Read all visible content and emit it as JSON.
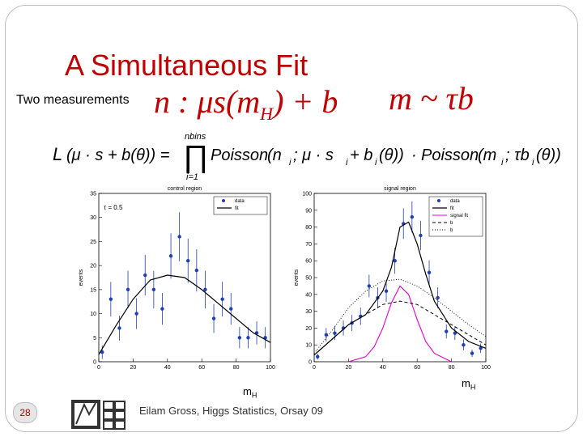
{
  "slide": {
    "title": "A Simultaneous Fit",
    "subtitle": "Two measurements",
    "eq_n": "n : μs(m",
    "eq_n_sub": "H",
    "eq_n_tail": ") + b",
    "eq_m": "m ~ τb",
    "footer": "Eilam Gross, Higgs Statistics, Orsay 09",
    "page_number": "28",
    "xlabel_left": "m",
    "xlabel_right": "m",
    "xlabel_sub": "H"
  },
  "formula": {
    "L": "L",
    "lhs_args": "(μ · s + b(θ)) =",
    "prod_top": "nbins",
    "prod_sym": "∏",
    "prod_bottom": "i=1",
    "pois1": "Poisson",
    "pois1_args": "(n",
    "pois1_i": "i",
    "pois1_mid": "; μ · s",
    "pois1_i2": "i",
    "pois1_mid2": " + b",
    "pois1_i3": "i",
    "pois1_tail": "(θ))",
    "dot": "·",
    "pois2": "Poisson",
    "pois2_args": "(m",
    "pois2_i": "i",
    "pois2_mid": "; τb",
    "pois2_i2": "i",
    "pois2_tail": "(θ))"
  },
  "chart_data": [
    {
      "type": "scatter",
      "title": "control region",
      "annotation": "τ = 0.5",
      "xlabel": "",
      "ylabel": "events",
      "xlim": [
        0,
        100
      ],
      "ylim": [
        0,
        35
      ],
      "xticks": [
        0,
        20,
        40,
        60,
        80,
        100
      ],
      "yticks": [
        0,
        5,
        10,
        15,
        20,
        25,
        30,
        35
      ],
      "legend": [
        "data",
        "fit"
      ],
      "legend_position": "top-right",
      "series": [
        {
          "name": "data",
          "style": "points",
          "x": [
            2,
            7,
            12,
            17,
            22,
            27,
            32,
            37,
            42,
            47,
            52,
            57,
            62,
            67,
            72,
            77,
            82,
            87,
            92,
            97
          ],
          "y": [
            2,
            13,
            7,
            15,
            10,
            18,
            15,
            11,
            22,
            26,
            21,
            19,
            15,
            9,
            13,
            11,
            5,
            5,
            6,
            5
          ],
          "err": [
            1.4,
            3.6,
            2.6,
            3.9,
            3.2,
            4.2,
            3.9,
            3.3,
            4.7,
            5.1,
            4.6,
            4.4,
            3.9,
            3.0,
            3.6,
            3.3,
            2.2,
            2.2,
            2.4,
            2.2
          ]
        },
        {
          "name": "fit",
          "style": "line",
          "x": [
            0,
            10,
            20,
            30,
            40,
            50,
            60,
            70,
            80,
            90,
            100
          ],
          "y": [
            1.5,
            7.5,
            13,
            17,
            18,
            17.5,
            15,
            12,
            9,
            6,
            4
          ]
        }
      ]
    },
    {
      "type": "scatter",
      "title": "signal region",
      "xlabel": "",
      "ylabel": "events",
      "xlim": [
        0,
        100
      ],
      "ylim": [
        0,
        100
      ],
      "xticks": [
        0,
        20,
        40,
        60,
        80,
        100
      ],
      "yticks": [
        0,
        10,
        20,
        30,
        40,
        50,
        60,
        70,
        80,
        90,
        100
      ],
      "legend": [
        "data",
        "fit",
        "signal fit",
        "b",
        "b"
      ],
      "legend_position": "top-right",
      "series": [
        {
          "name": "data",
          "style": "points",
          "x": [
            2,
            7,
            12,
            17,
            22,
            27,
            32,
            37,
            42,
            47,
            52,
            57,
            62,
            67,
            72,
            77,
            82,
            87,
            92,
            97
          ],
          "y": [
            3,
            16,
            17,
            20,
            23,
            27,
            45,
            38,
            42,
            60,
            82,
            86,
            75,
            53,
            38,
            18,
            17,
            10,
            5,
            8
          ],
          "err": [
            1.7,
            4,
            4.1,
            4.5,
            4.8,
            5.2,
            6.7,
            6.2,
            6.5,
            7.7,
            9.1,
            9.3,
            8.7,
            7.3,
            6.2,
            4.2,
            4.1,
            3.2,
            2.2,
            2.8
          ]
        },
        {
          "name": "fit",
          "style": "solid",
          "x": [
            0,
            10,
            20,
            30,
            40,
            45,
            50,
            55,
            60,
            65,
            70,
            80,
            90,
            100
          ],
          "y": [
            4,
            13,
            22,
            28,
            42,
            56,
            80,
            83,
            70,
            52,
            36,
            20,
            12,
            8
          ]
        },
        {
          "name": "signal fit",
          "style": "magenta",
          "x": [
            20,
            30,
            35,
            40,
            45,
            50,
            55,
            60,
            65,
            70,
            80
          ],
          "y": [
            0,
            3,
            9,
            20,
            35,
            45,
            40,
            25,
            12,
            5,
            0
          ]
        },
        {
          "name": "b",
          "style": "dashed",
          "x": [
            0,
            10,
            20,
            30,
            40,
            50,
            60,
            70,
            80,
            90,
            100
          ],
          "y": [
            4,
            13,
            22,
            28,
            34,
            36,
            34,
            28,
            22,
            16,
            10
          ]
        },
        {
          "name": "b",
          "style": "dotted",
          "x": [
            0,
            10,
            20,
            30,
            40,
            50,
            60,
            70,
            80,
            90,
            100
          ],
          "y": [
            5,
            18,
            32,
            42,
            48,
            49,
            45,
            38,
            30,
            22,
            15
          ]
        }
      ]
    }
  ]
}
